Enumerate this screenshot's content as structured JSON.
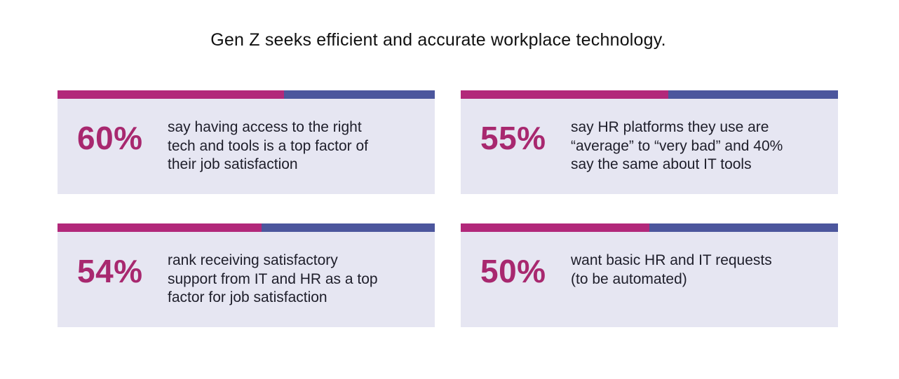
{
  "title": "Gen Z seeks efficient and accurate workplace technology.",
  "colors": {
    "magenta": "#b2287a",
    "indigo": "#4c569d",
    "card_bg": "#e6e6f2",
    "stat_text": "#a8286f"
  },
  "chart_data": {
    "type": "table",
    "title": "Gen Z seeks efficient and accurate workplace technology.",
    "categories": [
      "say having access to the right tech and tools is a top factor of their job satisfaction",
      "say HR platforms they use are “average” to “very bad” and 40% say the same about IT tools",
      "rank receiving satisfactory support from IT and HR as a top factor for job satisfaction",
      "want basic HR and IT requests (to be automated)"
    ],
    "values": [
      60,
      55,
      54,
      50
    ],
    "unit": "%"
  },
  "cards": [
    {
      "stat": "60%",
      "value": 60,
      "lines": [
        "say having access to the right",
        "tech and tools is a top factor of",
        "their job satisfaction"
      ]
    },
    {
      "stat": "55%",
      "value": 55,
      "lines": [
        "say HR platforms they use are",
        "“average” to “very bad” and 40%",
        "say the same about IT tools"
      ]
    },
    {
      "stat": "54%",
      "value": 54,
      "lines": [
        "rank receiving satisfactory",
        "support from IT and HR as a top",
        "factor for job satisfaction"
      ]
    },
    {
      "stat": "50%",
      "value": 50,
      "lines": [
        "want basic HR and IT requests",
        "(to be automated)"
      ]
    }
  ]
}
